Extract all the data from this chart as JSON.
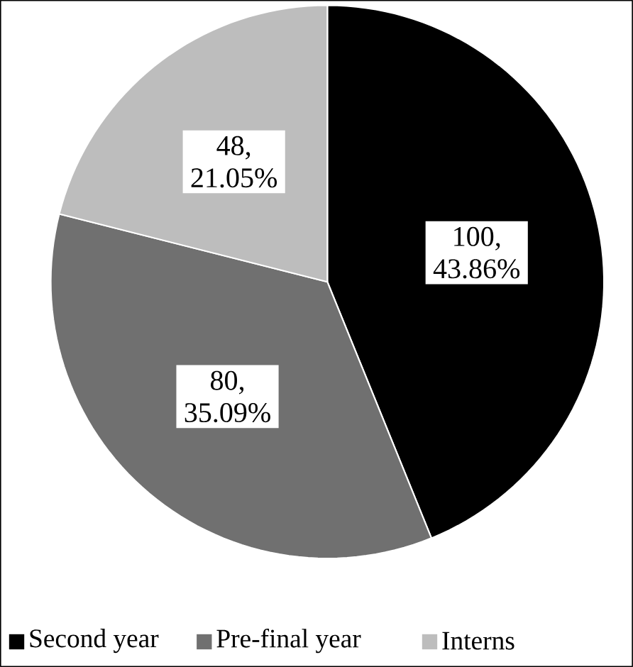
{
  "chart_data": {
    "type": "pie",
    "categories": [
      "Second year",
      "Pre-final year",
      "Interns"
    ],
    "values": [
      100,
      80,
      48
    ],
    "colors": [
      "#000000",
      "#707070",
      "#bdbdbd"
    ],
    "value_labels": [
      "100, 43.86%",
      "80, 35.09%",
      "48, 21.05%"
    ],
    "legend": "bottom"
  }
}
